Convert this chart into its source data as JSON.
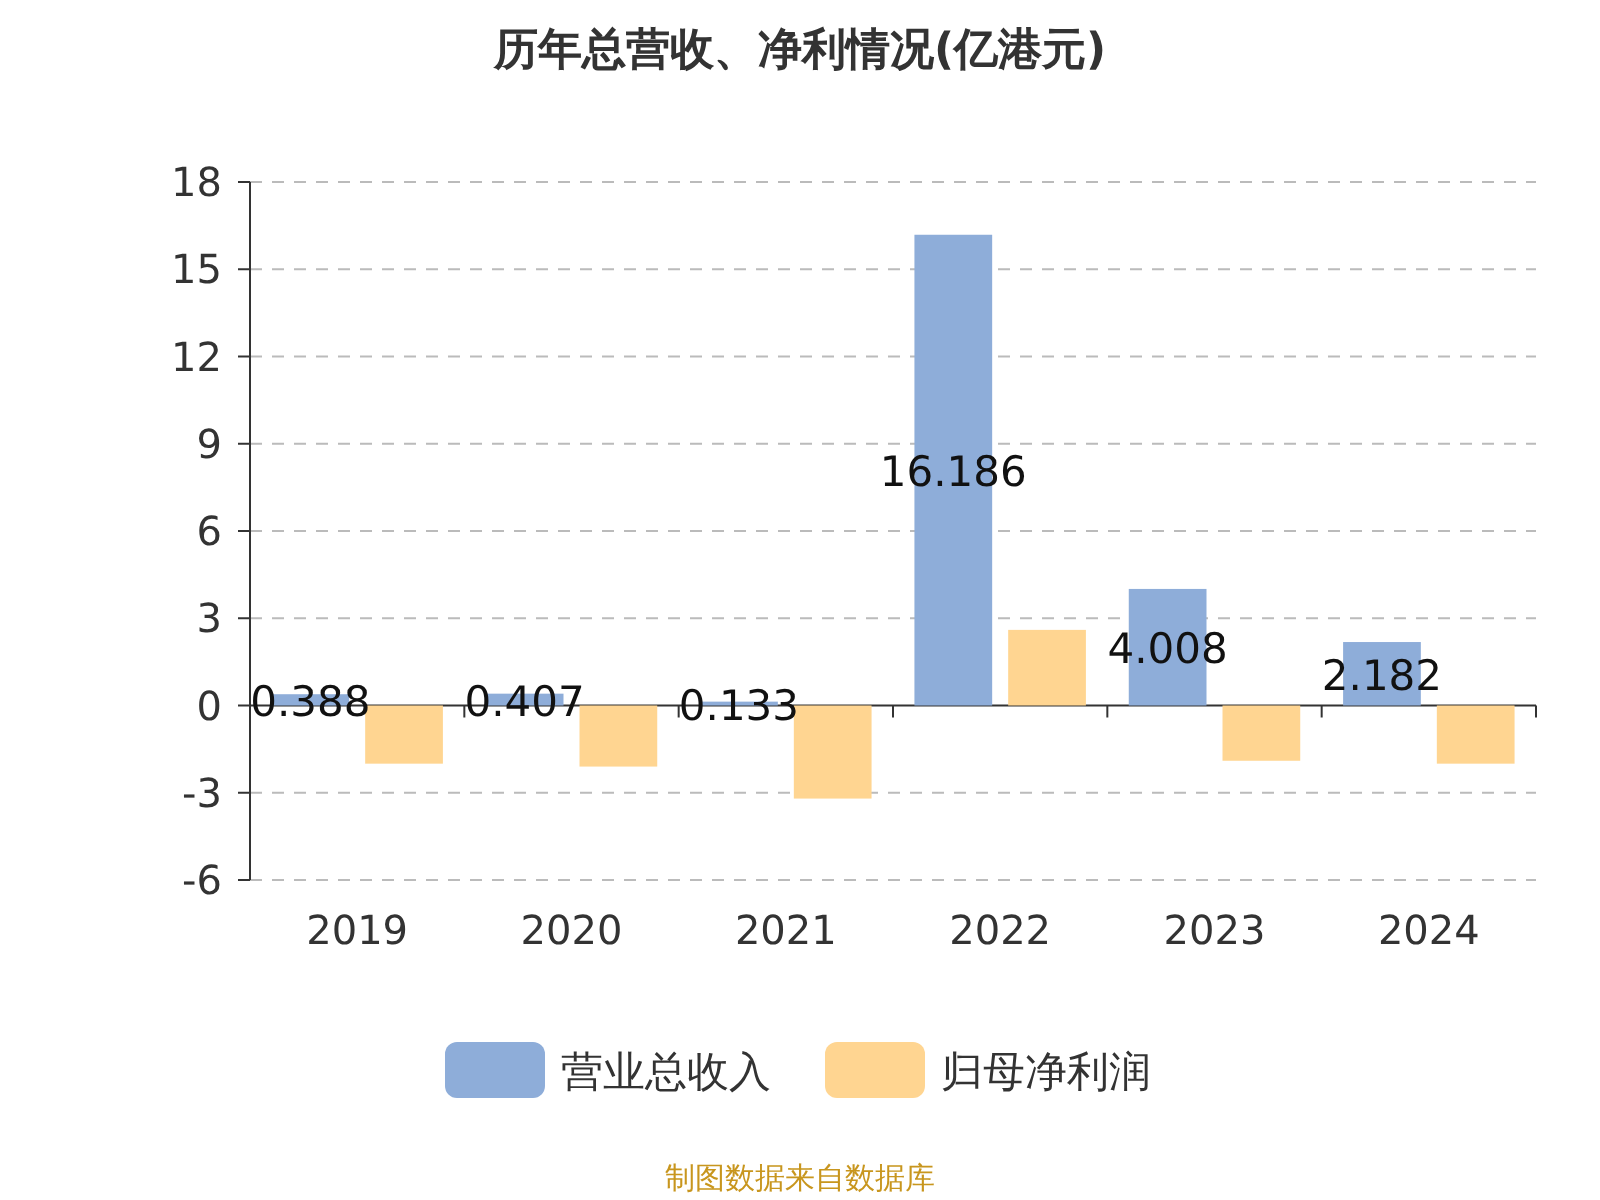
{
  "chart_data": {
    "type": "bar",
    "title": "历年总营收、净利情况(亿港元)",
    "categories": [
      "2019",
      "2020",
      "2021",
      "2022",
      "2023",
      "2024"
    ],
    "series": [
      {
        "name": "营业总收入",
        "color": "#8eadd9",
        "values": [
          0.388,
          0.407,
          0.133,
          16.186,
          4.008,
          2.182
        ],
        "value_labels": [
          "0.388",
          "0.407",
          "0.133",
          "16.186",
          "4.008",
          "2.182"
        ]
      },
      {
        "name": "归母净利润",
        "color": "#ffd591",
        "values": [
          -2.0,
          -2.1,
          -3.2,
          2.6,
          -1.9,
          -2.0
        ]
      }
    ],
    "ylim": [
      -6,
      18
    ],
    "yticks": [
      -6,
      -3,
      0,
      3,
      6,
      9,
      12,
      15,
      18
    ],
    "grid": "y",
    "legend": "bottom",
    "annotations": [
      "制图数据来自数据库"
    ]
  }
}
